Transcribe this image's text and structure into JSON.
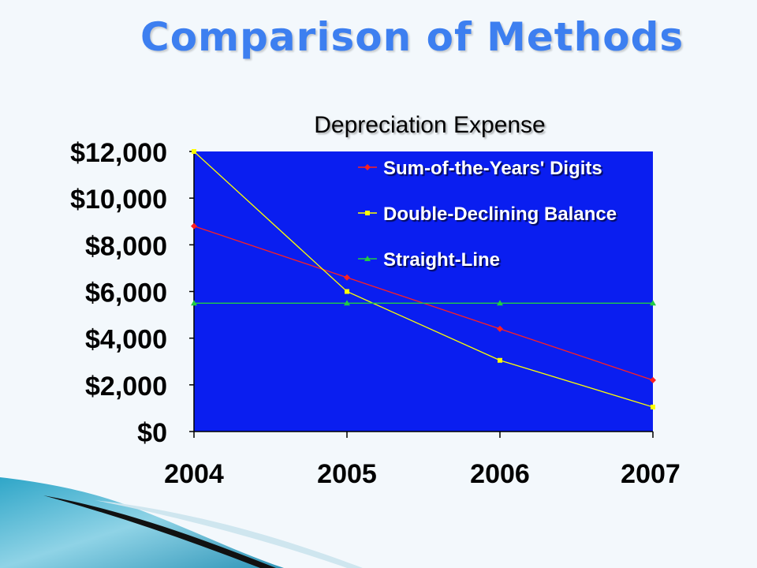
{
  "slide": {
    "title": "Comparison of Methods"
  },
  "colors": {
    "background": "#f3f8fc",
    "title": "#3d7ff0",
    "plot_area": "#0a1ef0",
    "axis_text": "#000000",
    "legend_text": "#ffffff"
  },
  "chart_data": {
    "type": "line",
    "title": "Depreciation Expense",
    "xlabel": "",
    "ylabel": "",
    "categories": [
      "2004",
      "2005",
      "2006",
      "2007"
    ],
    "ylim": [
      0,
      12000
    ],
    "yticks": [
      0,
      2000,
      4000,
      6000,
      8000,
      10000,
      12000
    ],
    "ytick_labels": [
      "$0",
      "$2,000",
      "$4,000",
      "$6,000",
      "$8,000",
      "$10,000",
      "$12,000"
    ],
    "grid": false,
    "legend_position": "top-right",
    "series": [
      {
        "name": "Sum-of-the-Years' Digits",
        "values": [
          8800,
          6600,
          4400,
          2200
        ],
        "color": "#ff2020",
        "marker": "diamond"
      },
      {
        "name": "Double-Declining Balance",
        "values": [
          12000,
          6000,
          3050,
          1050
        ],
        "color": "#ffff00",
        "marker": "square"
      },
      {
        "name": "Straight-Line",
        "values": [
          5500,
          5500,
          5500,
          5500
        ],
        "color": "#22cc44",
        "marker": "triangle"
      }
    ]
  }
}
